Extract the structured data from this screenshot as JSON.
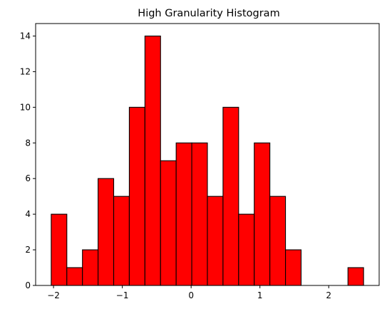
{
  "chart_data": {
    "type": "bar",
    "subtype": "histogram",
    "title": "High Granularity Histogram",
    "xlabel": "",
    "ylabel": "",
    "bin_edges": [
      -2.0335,
      -1.8065,
      -1.5795,
      -1.3525,
      -1.1255,
      -0.8985,
      -0.6715,
      -0.4445,
      -0.2175,
      0.0095,
      0.2365,
      0.4635,
      0.6905,
      0.9175,
      1.1445,
      1.3715,
      1.5985,
      1.8255,
      2.0525,
      2.2795,
      2.5065
    ],
    "values": [
      4,
      1,
      2,
      6,
      5,
      10,
      14,
      7,
      8,
      8,
      5,
      10,
      4,
      8,
      5,
      2,
      0,
      0,
      0,
      1
    ],
    "xlim": [
      -2.26,
      2.733
    ],
    "ylim": [
      0,
      14.7
    ],
    "xticks": [
      -2,
      -1,
      0,
      1,
      2
    ],
    "xtick_labels": [
      "−2",
      "−1",
      "0",
      "1",
      "2"
    ],
    "yticks": [
      0,
      2,
      4,
      6,
      8,
      10,
      12,
      14
    ],
    "ytick_labels": [
      "0",
      "2",
      "4",
      "6",
      "8",
      "10",
      "12",
      "14"
    ],
    "grid": false,
    "bar_color": "#ff0000",
    "edge_color": "#000000"
  }
}
